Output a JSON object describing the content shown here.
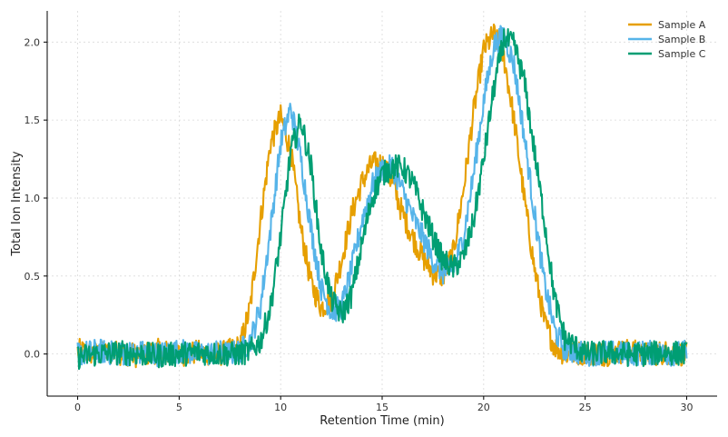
{
  "chart_data": {
    "type": "line",
    "title": "",
    "xlabel": "Retention Time (min)",
    "ylabel": "Total Ion Intensity",
    "xlim": [
      -1.5,
      31.5
    ],
    "ylim": [
      -0.27,
      2.2
    ],
    "xticks": [
      0,
      5,
      10,
      15,
      20,
      25,
      30
    ],
    "yticks": [
      0.0,
      0.5,
      1.0,
      1.5,
      2.0
    ],
    "xtick_labels": [
      "0",
      "5",
      "10",
      "15",
      "20",
      "25",
      "30"
    ],
    "ytick_labels": [
      "0.0",
      "0.5",
      "1.0",
      "1.5",
      "2.0"
    ],
    "grid": true,
    "legend_position": "top-right",
    "series": [
      {
        "name": "Sample A",
        "color": "#E69F00",
        "x": [
          0,
          1,
          2,
          3,
          4,
          5,
          6,
          7,
          7.5,
          8,
          8.5,
          9,
          9.5,
          10,
          10.5,
          11,
          11.5,
          12,
          12.5,
          13,
          13.5,
          14,
          14.5,
          15,
          15.5,
          16,
          16.5,
          17,
          17.5,
          18,
          18.5,
          19,
          19.5,
          20,
          20.5,
          21,
          21.5,
          22,
          22.5,
          23,
          23.5,
          24,
          25,
          26,
          27,
          28,
          29,
          30
        ],
        "y": [
          0.02,
          0.0,
          0.01,
          -0.01,
          0.02,
          0.0,
          0.01,
          0.0,
          0.02,
          0.05,
          0.3,
          0.85,
          1.35,
          1.52,
          1.3,
          0.8,
          0.45,
          0.3,
          0.35,
          0.6,
          0.9,
          1.1,
          1.22,
          1.22,
          1.1,
          0.9,
          0.75,
          0.62,
          0.52,
          0.5,
          0.65,
          1.05,
          1.55,
          1.95,
          2.05,
          1.9,
          1.5,
          1.0,
          0.55,
          0.2,
          0.05,
          0.0,
          0.01,
          0.0,
          0.02,
          0.0,
          0.01,
          0.0
        ]
      },
      {
        "name": "Sample B",
        "color": "#56B4E9",
        "x": [
          0,
          1,
          2,
          3,
          4,
          5,
          6,
          7,
          7.5,
          8,
          8.5,
          9,
          9.5,
          10,
          10.5,
          11,
          11.5,
          12,
          12.5,
          13,
          13.5,
          14,
          14.5,
          15,
          15.5,
          16,
          16.5,
          17,
          17.5,
          18,
          18.5,
          19,
          19.5,
          20,
          20.5,
          21,
          21.5,
          22,
          22.5,
          23,
          23.5,
          24,
          25,
          26,
          27,
          28,
          29,
          30
        ],
        "y": [
          0.0,
          0.02,
          0.0,
          0.01,
          0.0,
          0.02,
          0.0,
          0.01,
          0.0,
          0.02,
          0.08,
          0.3,
          0.8,
          1.35,
          1.58,
          1.25,
          0.8,
          0.42,
          0.27,
          0.3,
          0.55,
          0.85,
          1.08,
          1.18,
          1.2,
          1.05,
          0.88,
          0.75,
          0.6,
          0.52,
          0.55,
          0.75,
          1.15,
          1.62,
          1.98,
          2.05,
          1.85,
          1.4,
          0.9,
          0.45,
          0.15,
          0.03,
          0.0,
          0.01,
          0.0,
          0.01,
          0.0,
          0.01
        ]
      },
      {
        "name": "Sample C",
        "color": "#009E73",
        "x": [
          0,
          1,
          2,
          3,
          4,
          5,
          6,
          7,
          7.5,
          8,
          8.5,
          9,
          9.5,
          10,
          10.5,
          11,
          11.5,
          12,
          12.5,
          13,
          13.5,
          14,
          14.5,
          15,
          15.5,
          16,
          16.5,
          17,
          17.5,
          18,
          18.5,
          19,
          19.5,
          20,
          20.5,
          21,
          21.5,
          22,
          22.5,
          23,
          23.5,
          24,
          25,
          26,
          27,
          28,
          29,
          30
        ],
        "y": [
          -0.02,
          0.0,
          0.01,
          0.0,
          -0.01,
          0.0,
          0.01,
          0.0,
          0.0,
          0.0,
          0.02,
          0.08,
          0.3,
          0.75,
          1.3,
          1.5,
          1.2,
          0.65,
          0.35,
          0.25,
          0.38,
          0.7,
          1.0,
          1.15,
          1.2,
          1.2,
          1.1,
          0.92,
          0.75,
          0.6,
          0.55,
          0.62,
          0.85,
          1.25,
          1.7,
          2.02,
          1.98,
          1.75,
          1.3,
          0.85,
          0.35,
          0.1,
          0.0,
          0.01,
          0.0,
          0.0,
          0.01,
          0.0
        ]
      }
    ]
  }
}
